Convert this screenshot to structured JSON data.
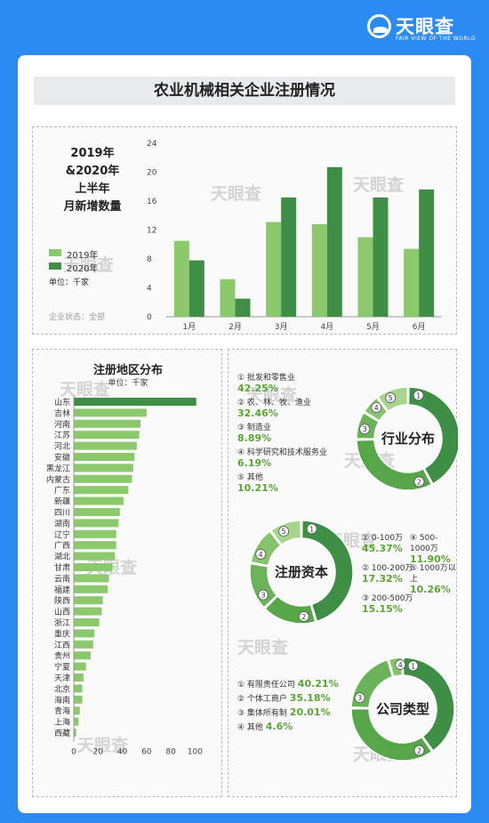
{
  "brand": {
    "name": "天眼查",
    "sub": "FAIR VIEW OF THE WORLD"
  },
  "title": "农业机械相关企业注册情况",
  "watermark": "天眼查",
  "colors": {
    "light": "#8cc86c",
    "dark": "#3e8e45"
  },
  "panel1": {
    "title_lines": [
      "2019年",
      "&2020年",
      "上半年",
      "月新增数量"
    ],
    "legend": [
      "2019年",
      "2020年"
    ],
    "unit": "单位：千家",
    "status": "企业状态：全部"
  },
  "panel2": {
    "title": "注册地区分布",
    "unit": "单位：千家"
  },
  "chart_data": [
    {
      "type": "bar",
      "categories": [
        "1月",
        "2月",
        "3月",
        "4月",
        "5月",
        "6月"
      ],
      "series": [
        {
          "name": "2019年",
          "values": [
            10.5,
            5.2,
            13.1,
            12.8,
            11.0,
            9.4
          ]
        },
        {
          "name": "2020年",
          "values": [
            7.8,
            2.5,
            16.5,
            20.7,
            16.5,
            17.6
          ]
        }
      ],
      "ylim": [
        0,
        24
      ],
      "yticks": [
        0,
        4,
        8,
        12,
        16,
        20,
        24
      ]
    },
    {
      "type": "bar",
      "orientation": "horizontal",
      "categories": [
        "山东",
        "吉林",
        "河南",
        "江苏",
        "河北",
        "安徽",
        "黑龙江",
        "内蒙古",
        "广东",
        "新疆",
        "四川",
        "湖南",
        "辽宁",
        "广西",
        "湖北",
        "甘肃",
        "云南",
        "福建",
        "陕西",
        "山西",
        "浙江",
        "重庆",
        "江西",
        "贵州",
        "宁夏",
        "天津",
        "北京",
        "海南",
        "青海",
        "上海",
        "西藏"
      ],
      "values": [
        101,
        60,
        55,
        54,
        52,
        50,
        49,
        48,
        45,
        41,
        38,
        37,
        35,
        35,
        34,
        32,
        29,
        28,
        24,
        23,
        21,
        17,
        16,
        14,
        10,
        8,
        7,
        7,
        5,
        4,
        2
      ],
      "xlim": [
        0,
        110
      ],
      "xticks": [
        0,
        20,
        40,
        60,
        80,
        100
      ]
    },
    {
      "type": "pie",
      "title": "行业分布",
      "labels": [
        "批发和零售业",
        "农、林、牧、渔业",
        "制造业",
        "科学研究和技术服务业",
        "其他"
      ],
      "values": [
        42.25,
        32.46,
        8.89,
        6.19,
        10.21
      ],
      "display": [
        "42.25%",
        "32.46%",
        "8.89%",
        "6.19%",
        "10.21%"
      ]
    },
    {
      "type": "pie",
      "title": "注册资本",
      "labels": [
        "0-100万",
        "100-200万",
        "200-500万",
        "500-1000万",
        "1000万以上"
      ],
      "values": [
        45.37,
        17.32,
        15.15,
        11.9,
        10.26
      ],
      "display": [
        "45.37%",
        "17.32%",
        "15.15%",
        "11.90%",
        "10.26%"
      ]
    },
    {
      "type": "pie",
      "title": "公司类型",
      "labels": [
        "有限责任公司",
        "个体工商户",
        "集体所有制",
        "其他"
      ],
      "values": [
        40.21,
        35.18,
        20.01,
        4.6
      ],
      "display": [
        "40.21%",
        "35.18%",
        "20.01%",
        "4.6%"
      ]
    }
  ]
}
